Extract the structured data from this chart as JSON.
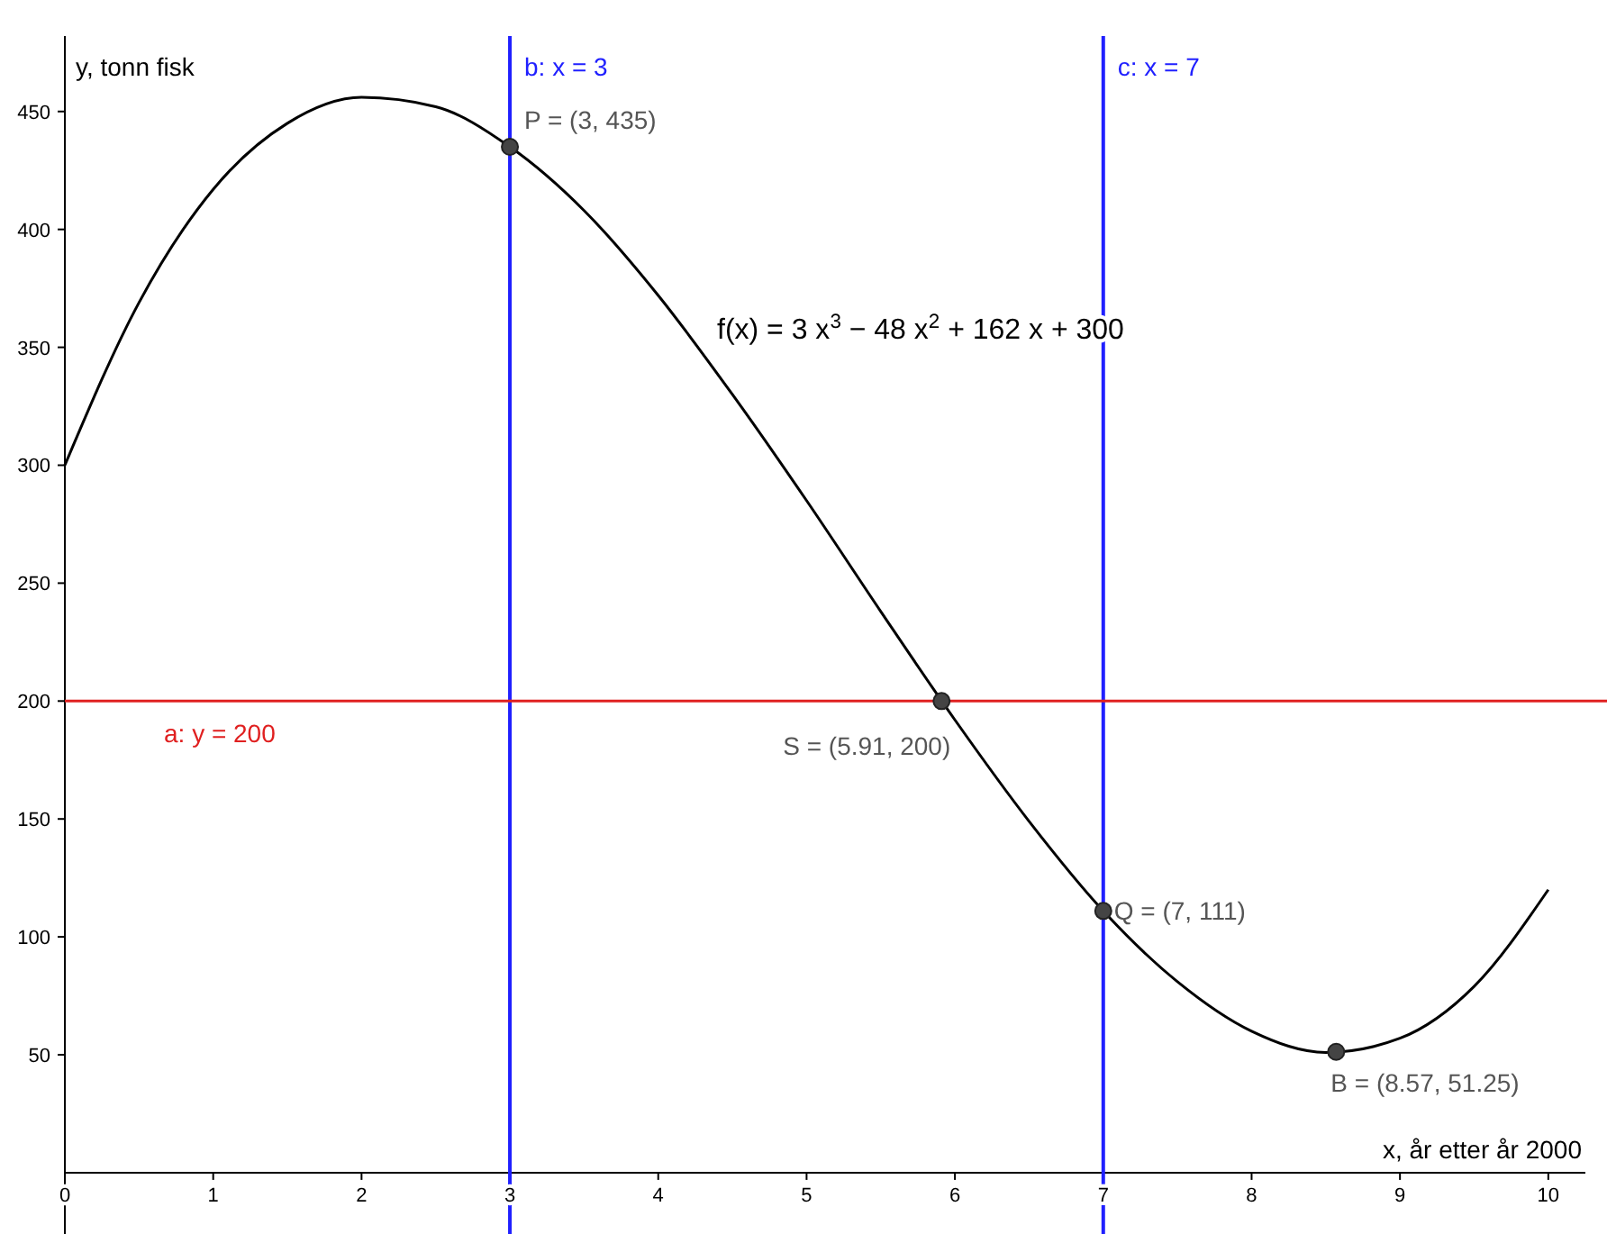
{
  "chart_data": {
    "type": "line",
    "xlabel": "x, år etter år 2000",
    "ylabel": "y, tonn fisk",
    "xlim": [
      0,
      10.25
    ],
    "ylim": [
      -26,
      482
    ],
    "xticks": [
      0,
      1,
      2,
      3,
      4,
      5,
      6,
      7,
      8,
      9,
      10
    ],
    "yticks": [
      50,
      100,
      150,
      200,
      250,
      300,
      350,
      400,
      450
    ],
    "grid": false,
    "marker": "none",
    "line_style": "solid",
    "series": [
      {
        "color": "#000000",
        "x": [
          0,
          0.5,
          1,
          1.5,
          2,
          2.5,
          3,
          3.5,
          4,
          4.5,
          5,
          5.5,
          6,
          6.5,
          7,
          7.5,
          8,
          8.5,
          9,
          9.5,
          10
        ],
        "values": [
          300,
          369,
          417,
          445,
          456,
          452,
          435,
          408,
          372,
          330,
          285,
          238,
          192,
          149,
          111,
          81,
          60,
          51,
          57,
          79,
          120
        ]
      },
      {
        "type": "scatter",
        "color": "#444444",
        "marker": "circle",
        "x": [
          3,
          5.91,
          7,
          8.57
        ],
        "values": [
          435,
          200,
          111,
          51.25
        ],
        "value_labels": [
          "P = (3, 435)",
          "S = (5.91, 200)",
          "Q = (7, 111)",
          "B = (8.57, 51.25)"
        ]
      }
    ],
    "ref_lines": [
      {
        "axis": "x",
        "value": 3,
        "label": "b: x = 3",
        "color": "#2020ff"
      },
      {
        "axis": "x",
        "value": 7,
        "label": "c: x = 7",
        "color": "#2020ff"
      },
      {
        "axis": "y",
        "value": 200,
        "label": "a: y = 200",
        "color": "#e02020"
      }
    ],
    "annotations": [
      "f(x) = 3 x$^{3}$ − 48 x$^{2}$ + 162 x + 300"
    ]
  }
}
